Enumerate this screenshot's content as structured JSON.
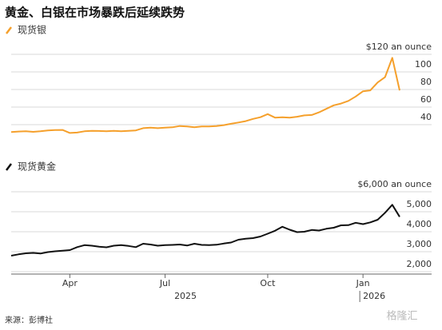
{
  "title": "黄金、白银在市场暴跌后延续跌势",
  "source": "来源：彭博社",
  "watermark": "格隆汇",
  "chart_data": [
    {
      "type": "line",
      "series": [
        {
          "name": "现货银",
          "color": "#f5a02c",
          "values": [
            31.5,
            32.2,
            32.5,
            31.8,
            32.5,
            33.5,
            33.8,
            34,
            30.5,
            31,
            32.5,
            33,
            32.8,
            32.5,
            33,
            32.5,
            33,
            33.5,
            36,
            36.5,
            36,
            36.5,
            37,
            38.5,
            38,
            37,
            38,
            38,
            38.5,
            39.5,
            41,
            42.5,
            44,
            46.5,
            48.5,
            52,
            48,
            48.5,
            48,
            49,
            50.5,
            51,
            54,
            58,
            62,
            64,
            67,
            72,
            78,
            79,
            88,
            94,
            116,
            79
          ]
        }
      ],
      "ylim": [
        25,
        125
      ],
      "yticks": [
        40,
        60,
        80,
        100,
        {
          "value": 120,
          "label": "$120 an ounce"
        }
      ],
      "grid": true
    },
    {
      "type": "line",
      "series": [
        {
          "name": "现货黄金",
          "color": "#111111",
          "values": [
            2800,
            2870,
            2920,
            2940,
            2910,
            2980,
            3020,
            3050,
            3080,
            3230,
            3330,
            3300,
            3250,
            3220,
            3300,
            3330,
            3290,
            3230,
            3400,
            3360,
            3300,
            3330,
            3340,
            3360,
            3310,
            3400,
            3340,
            3330,
            3350,
            3410,
            3460,
            3600,
            3650,
            3680,
            3760,
            3900,
            4050,
            4250,
            4100,
            3980,
            4000,
            4090,
            4060,
            4150,
            4200,
            4320,
            4330,
            4450,
            4380,
            4470,
            4600,
            4950,
            5350,
            4750
          ]
        }
      ],
      "categories": [
        null,
        null,
        null,
        null,
        null,
        null,
        null,
        null,
        "Apr",
        null,
        null,
        null,
        null,
        null,
        null,
        null,
        null,
        null,
        null,
        null,
        null,
        "Jul",
        null,
        null,
        null,
        null,
        null,
        null,
        null,
        null,
        null,
        null,
        null,
        null,
        null,
        "Oct",
        null,
        null,
        null,
        null,
        null,
        null,
        null,
        null,
        null,
        null,
        null,
        null,
        "Jan",
        null,
        null,
        null,
        null,
        null
      ],
      "year_labels": [
        "2025",
        "2026"
      ],
      "ylim": [
        1900,
        6100
      ],
      "yticks": [
        {
          "value": 2000,
          "label": "2,000"
        },
        {
          "value": 3000,
          "label": "3,000"
        },
        {
          "value": 4000,
          "label": "4,000"
        },
        {
          "value": 5000,
          "label": "5,000"
        },
        {
          "value": 6000,
          "label": "$6,000 an ounce"
        }
      ],
      "grid": true
    }
  ]
}
